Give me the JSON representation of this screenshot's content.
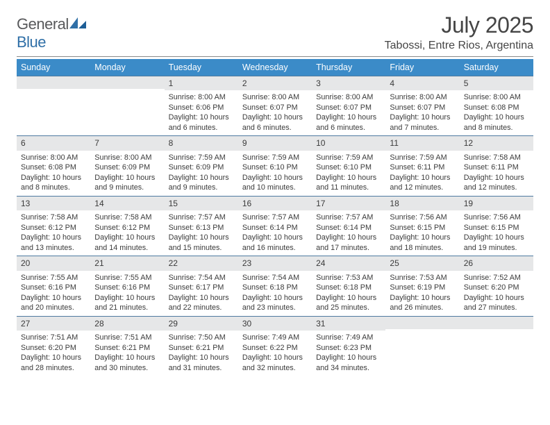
{
  "brand": {
    "name_a": "General",
    "name_b": "Blue"
  },
  "title": {
    "month": "July 2025",
    "location": "Tabossi, Entre Rios, Argentina"
  },
  "colors": {
    "header_bg": "#3b8bc8",
    "daynum_bg": "#e6e7e8",
    "rule": "#4e7aa0"
  },
  "day_names": [
    "Sunday",
    "Monday",
    "Tuesday",
    "Wednesday",
    "Thursday",
    "Friday",
    "Saturday"
  ],
  "weeks": [
    [
      {
        "n": "",
        "s": "",
        "t": "",
        "d": ""
      },
      {
        "n": "",
        "s": "",
        "t": "",
        "d": ""
      },
      {
        "n": "1",
        "s": "Sunrise: 8:00 AM",
        "t": "Sunset: 6:06 PM",
        "d": "Daylight: 10 hours and 6 minutes."
      },
      {
        "n": "2",
        "s": "Sunrise: 8:00 AM",
        "t": "Sunset: 6:07 PM",
        "d": "Daylight: 10 hours and 6 minutes."
      },
      {
        "n": "3",
        "s": "Sunrise: 8:00 AM",
        "t": "Sunset: 6:07 PM",
        "d": "Daylight: 10 hours and 6 minutes."
      },
      {
        "n": "4",
        "s": "Sunrise: 8:00 AM",
        "t": "Sunset: 6:07 PM",
        "d": "Daylight: 10 hours and 7 minutes."
      },
      {
        "n": "5",
        "s": "Sunrise: 8:00 AM",
        "t": "Sunset: 6:08 PM",
        "d": "Daylight: 10 hours and 8 minutes."
      }
    ],
    [
      {
        "n": "6",
        "s": "Sunrise: 8:00 AM",
        "t": "Sunset: 6:08 PM",
        "d": "Daylight: 10 hours and 8 minutes."
      },
      {
        "n": "7",
        "s": "Sunrise: 8:00 AM",
        "t": "Sunset: 6:09 PM",
        "d": "Daylight: 10 hours and 9 minutes."
      },
      {
        "n": "8",
        "s": "Sunrise: 7:59 AM",
        "t": "Sunset: 6:09 PM",
        "d": "Daylight: 10 hours and 9 minutes."
      },
      {
        "n": "9",
        "s": "Sunrise: 7:59 AM",
        "t": "Sunset: 6:10 PM",
        "d": "Daylight: 10 hours and 10 minutes."
      },
      {
        "n": "10",
        "s": "Sunrise: 7:59 AM",
        "t": "Sunset: 6:10 PM",
        "d": "Daylight: 10 hours and 11 minutes."
      },
      {
        "n": "11",
        "s": "Sunrise: 7:59 AM",
        "t": "Sunset: 6:11 PM",
        "d": "Daylight: 10 hours and 12 minutes."
      },
      {
        "n": "12",
        "s": "Sunrise: 7:58 AM",
        "t": "Sunset: 6:11 PM",
        "d": "Daylight: 10 hours and 12 minutes."
      }
    ],
    [
      {
        "n": "13",
        "s": "Sunrise: 7:58 AM",
        "t": "Sunset: 6:12 PM",
        "d": "Daylight: 10 hours and 13 minutes."
      },
      {
        "n": "14",
        "s": "Sunrise: 7:58 AM",
        "t": "Sunset: 6:12 PM",
        "d": "Daylight: 10 hours and 14 minutes."
      },
      {
        "n": "15",
        "s": "Sunrise: 7:57 AM",
        "t": "Sunset: 6:13 PM",
        "d": "Daylight: 10 hours and 15 minutes."
      },
      {
        "n": "16",
        "s": "Sunrise: 7:57 AM",
        "t": "Sunset: 6:14 PM",
        "d": "Daylight: 10 hours and 16 minutes."
      },
      {
        "n": "17",
        "s": "Sunrise: 7:57 AM",
        "t": "Sunset: 6:14 PM",
        "d": "Daylight: 10 hours and 17 minutes."
      },
      {
        "n": "18",
        "s": "Sunrise: 7:56 AM",
        "t": "Sunset: 6:15 PM",
        "d": "Daylight: 10 hours and 18 minutes."
      },
      {
        "n": "19",
        "s": "Sunrise: 7:56 AM",
        "t": "Sunset: 6:15 PM",
        "d": "Daylight: 10 hours and 19 minutes."
      }
    ],
    [
      {
        "n": "20",
        "s": "Sunrise: 7:55 AM",
        "t": "Sunset: 6:16 PM",
        "d": "Daylight: 10 hours and 20 minutes."
      },
      {
        "n": "21",
        "s": "Sunrise: 7:55 AM",
        "t": "Sunset: 6:16 PM",
        "d": "Daylight: 10 hours and 21 minutes."
      },
      {
        "n": "22",
        "s": "Sunrise: 7:54 AM",
        "t": "Sunset: 6:17 PM",
        "d": "Daylight: 10 hours and 22 minutes."
      },
      {
        "n": "23",
        "s": "Sunrise: 7:54 AM",
        "t": "Sunset: 6:18 PM",
        "d": "Daylight: 10 hours and 23 minutes."
      },
      {
        "n": "24",
        "s": "Sunrise: 7:53 AM",
        "t": "Sunset: 6:18 PM",
        "d": "Daylight: 10 hours and 25 minutes."
      },
      {
        "n": "25",
        "s": "Sunrise: 7:53 AM",
        "t": "Sunset: 6:19 PM",
        "d": "Daylight: 10 hours and 26 minutes."
      },
      {
        "n": "26",
        "s": "Sunrise: 7:52 AM",
        "t": "Sunset: 6:20 PM",
        "d": "Daylight: 10 hours and 27 minutes."
      }
    ],
    [
      {
        "n": "27",
        "s": "Sunrise: 7:51 AM",
        "t": "Sunset: 6:20 PM",
        "d": "Daylight: 10 hours and 28 minutes."
      },
      {
        "n": "28",
        "s": "Sunrise: 7:51 AM",
        "t": "Sunset: 6:21 PM",
        "d": "Daylight: 10 hours and 30 minutes."
      },
      {
        "n": "29",
        "s": "Sunrise: 7:50 AM",
        "t": "Sunset: 6:21 PM",
        "d": "Daylight: 10 hours and 31 minutes."
      },
      {
        "n": "30",
        "s": "Sunrise: 7:49 AM",
        "t": "Sunset: 6:22 PM",
        "d": "Daylight: 10 hours and 32 minutes."
      },
      {
        "n": "31",
        "s": "Sunrise: 7:49 AM",
        "t": "Sunset: 6:23 PM",
        "d": "Daylight: 10 hours and 34 minutes."
      },
      {
        "n": "",
        "s": "",
        "t": "",
        "d": ""
      },
      {
        "n": "",
        "s": "",
        "t": "",
        "d": ""
      }
    ]
  ]
}
